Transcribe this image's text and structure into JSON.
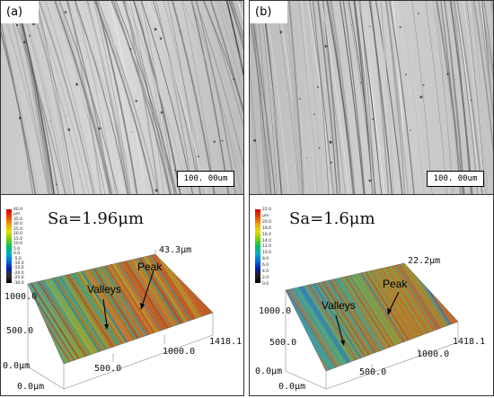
{
  "panels": [
    {
      "label": "(a)",
      "scale_bar": "100. 00um",
      "roughness": "Sa=1.96μm",
      "colorbar": {
        "ticks": [
          "40.0 μm",
          "35.0",
          "30.0",
          "25.0",
          "20.0",
          "15.0",
          "10.0",
          "5.0",
          "0.0",
          "-5.0",
          "-10.0",
          "-15.0",
          "-20.0",
          "-25.0",
          "-30.0"
        ]
      },
      "height_max": "43.3μm",
      "y_max": "1000.0",
      "y_mid": "500.0",
      "origin": "0.0μm",
      "x_origin": "0.0μm",
      "x_mid": "500.0",
      "x_tick": "1000.0",
      "x_max": "1418.1",
      "annotation_peak": "Peak",
      "annotation_valleys": "Valleys"
    },
    {
      "label": "(b)",
      "scale_bar": "100. 00um",
      "roughness": "Sa=1.6μm",
      "colorbar": {
        "ticks": [
          "22.0 μm",
          "20.0",
          "18.0",
          "16.0",
          "14.0",
          "12.0",
          "10.0",
          "8.0",
          "6.0",
          "4.0",
          "2.0",
          "0.0"
        ]
      },
      "height_max": "22.2μm",
      "y_max": "1000.0",
      "y_mid": "500.0",
      "origin": "0.0μm",
      "x_origin": "0.0μm",
      "x_mid": "500.0",
      "x_tick": "1000.0",
      "x_max": "1418.1",
      "annotation_peak": "Peak",
      "annotation_valleys": "Valleys"
    }
  ]
}
